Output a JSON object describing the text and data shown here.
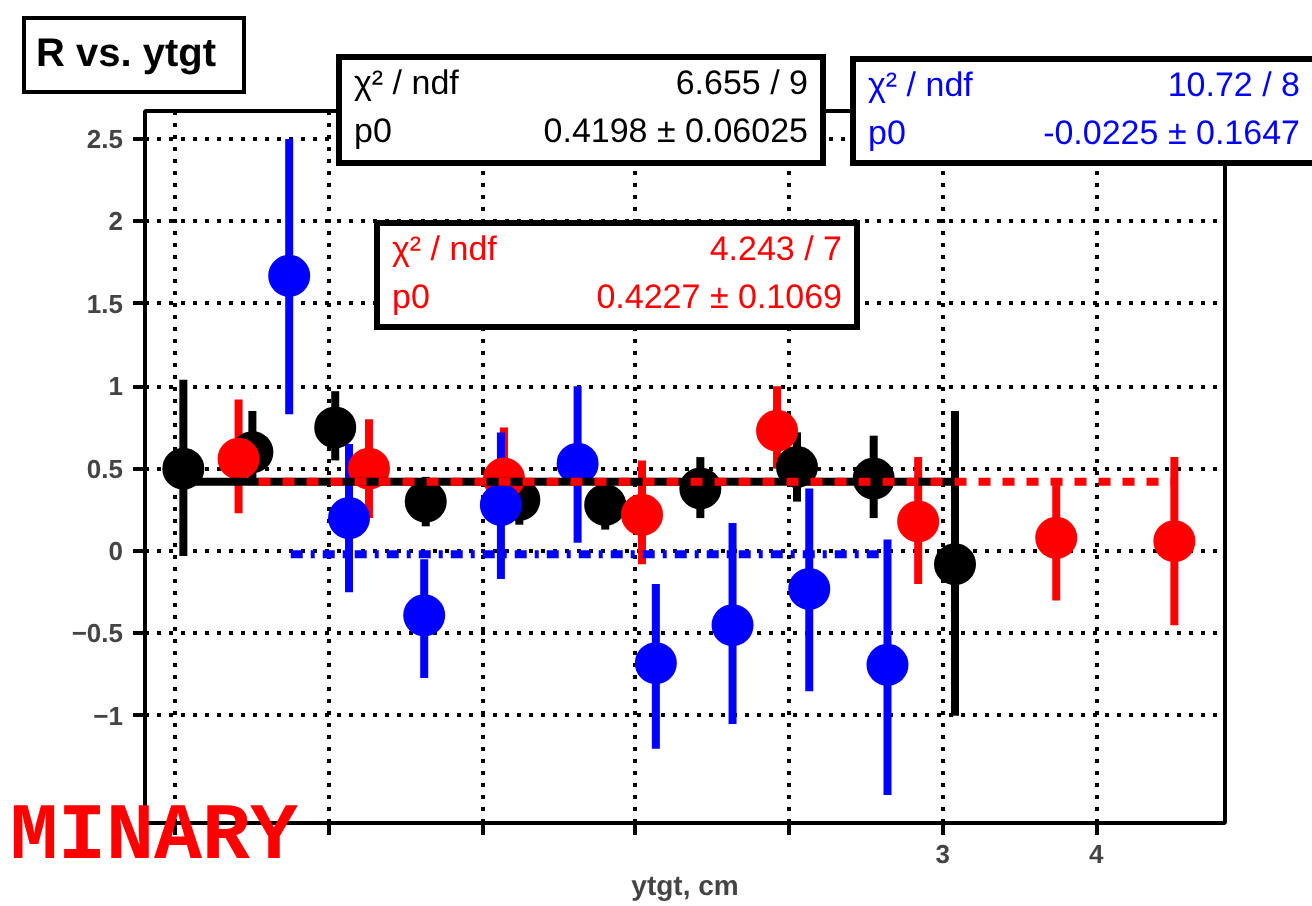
{
  "chart_data": {
    "type": "scatter",
    "title": "R vs. ytgt",
    "xlabel": "ytgt, cm",
    "xlim": [
      -2.2,
      4.84
    ],
    "ylim": [
      -1.65,
      2.67
    ],
    "xticks": [
      {
        "value": -2,
        "label": null
      },
      {
        "value": -1,
        "label": null
      },
      {
        "value": 0,
        "label": null
      },
      {
        "value": 1,
        "label": null
      },
      {
        "value": 2,
        "label": null
      },
      3,
      4
    ],
    "yticks": [
      -1,
      -0.5,
      0,
      0.5,
      1,
      1.5,
      2,
      2.5
    ],
    "grid": true,
    "marker": "circle",
    "series": [
      {
        "color": "#000000",
        "x": [
          -1.95,
          -1.5,
          -0.96,
          -0.37,
          0.24,
          0.8,
          1.42,
          2.05,
          2.55,
          3.08
        ],
        "values": [
          0.5,
          0.6,
          0.75,
          0.3,
          0.31,
          0.28,
          0.38,
          0.51,
          0.44,
          -0.08
        ],
        "errors": [
          [
            -0.03,
            1.04
          ],
          [
            0.4,
            0.85
          ],
          [
            0.55,
            0.97
          ],
          [
            0.15,
            0.45
          ],
          [
            0.16,
            0.46
          ],
          [
            0.13,
            0.43
          ],
          [
            0.2,
            0.57
          ],
          [
            0.3,
            0.72
          ],
          [
            0.2,
            0.7
          ],
          [
            -1.0,
            0.85
          ]
        ]
      },
      {
        "color": "#ff0000",
        "x": [
          -1.59,
          -0.74,
          0.14,
          1.04,
          1.92,
          2.84,
          3.74,
          4.51
        ],
        "values": [
          0.56,
          0.5,
          0.44,
          0.22,
          0.73,
          0.18,
          0.08,
          0.06
        ],
        "errors": [
          [
            0.23,
            0.92
          ],
          [
            0.2,
            0.8
          ],
          [
            0.44,
            0.75
          ],
          [
            -0.08,
            0.55
          ],
          [
            0.5,
            1.0
          ],
          [
            -0.2,
            0.57
          ],
          [
            -0.3,
            0.4
          ],
          [
            -0.45,
            0.57
          ]
        ]
      },
      {
        "color": "#0000ff",
        "x": [
          -1.26,
          -0.87,
          -0.38,
          0.12,
          0.62,
          1.13,
          1.63,
          2.13,
          2.64
        ],
        "values": [
          1.67,
          0.2,
          -0.39,
          0.28,
          0.53,
          -0.68,
          -0.45,
          -0.23,
          -0.69
        ],
        "errors": [
          [
            0.83,
            2.5
          ],
          [
            -0.25,
            0.65
          ],
          [
            -0.77,
            -0.05
          ],
          [
            -0.17,
            0.72
          ],
          [
            0.05,
            1.0
          ],
          [
            -1.2,
            -0.2
          ],
          [
            -1.05,
            0.17
          ],
          [
            -0.85,
            0.38
          ],
          [
            -1.48,
            0.07
          ]
        ]
      },
      {
        "type": "line",
        "color": "#000000",
        "line_style": "solid",
        "marker": "none",
        "x": [
          -2.0,
          3.07
        ],
        "values": [
          0.42,
          0.42
        ]
      },
      {
        "type": "line",
        "color": "#ff0000",
        "line_style": "dashed",
        "marker": "none",
        "x": [
          -1.46,
          4.51
        ],
        "values": [
          0.42,
          0.42
        ]
      },
      {
        "type": "line",
        "color": "#0000ff",
        "line_style": "dashdot",
        "marker": "none",
        "x": [
          -1.25,
          2.6
        ],
        "values": [
          -0.02,
          -0.02
        ]
      }
    ],
    "annotations": [
      "χ² / ndf",
      "6.655 / 9",
      "p0",
      "0.4198 ± 0.06025",
      "χ² / ndf",
      "4.243 / 7",
      "p0",
      "0.4227 ± 0.1069",
      "χ² / ndf",
      "10.72 / 8",
      "p0",
      "-0.0225 ± 0.1647",
      "MINARY"
    ]
  }
}
